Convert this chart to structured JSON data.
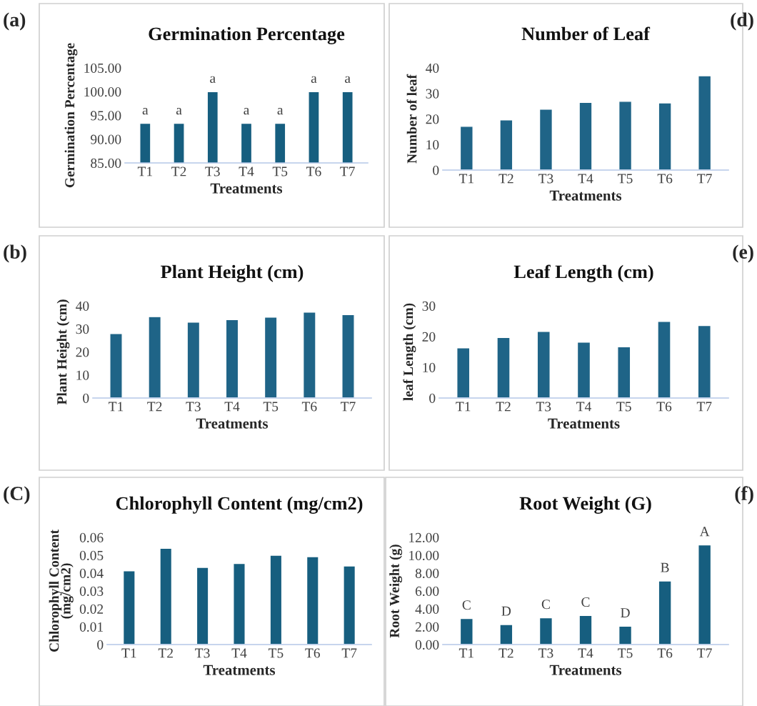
{
  "chart_data": [
    {
      "type": "bar",
      "title": "Germination Percentage",
      "xlabel": "Treatments",
      "ylabel": "Germination Percentage",
      "annotations": [
        "(a)"
      ],
      "categories": [
        "T1",
        "T2",
        "T3",
        "T4",
        "T5",
        "T6",
        "T7"
      ],
      "values": [
        93.33,
        93.33,
        100,
        93.33,
        93.33,
        100,
        100
      ],
      "color": "#165e7f",
      "value_labels": [
        "a",
        "a",
        "a",
        "a",
        "a",
        "a",
        "a"
      ],
      "ylim": [
        85,
        105
      ],
      "yticks": [
        {
          "value": 85,
          "label": "85.00"
        },
        {
          "value": 90,
          "label": "90.00"
        },
        {
          "value": 95,
          "label": "95.00"
        },
        {
          "value": 100,
          "label": "100.00"
        },
        {
          "value": 105,
          "label": "105.00"
        }
      ],
      "grid": false,
      "legend": false
    },
    {
      "type": "bar",
      "title": "Number of Leaf",
      "xlabel": "Treatments",
      "ylabel": "Number of leaf",
      "annotations": [
        "(d)"
      ],
      "categories": [
        "T1",
        "T2",
        "T3",
        "T4",
        "T5",
        "T6",
        "T7"
      ],
      "values": [
        17.1,
        19.6,
        23.8,
        26.5,
        26.9,
        26.3,
        36.9
      ],
      "color": "#1f6487",
      "ylim": [
        0,
        40
      ],
      "yticks": [
        0,
        10,
        20,
        30,
        40
      ],
      "grid": false,
      "legend": false
    },
    {
      "type": "bar",
      "title": "Plant Height (cm)",
      "xlabel": "Treatments",
      "ylabel": "Plant Height (cm)",
      "annotations": [
        "(b)"
      ],
      "categories": [
        "T1",
        "T2",
        "T3",
        "T4",
        "T5",
        "T6",
        "T7"
      ],
      "values": [
        28.0,
        35.3,
        32.9,
        34.0,
        35.1,
        37.3,
        36.2
      ],
      "color": "#1f6487",
      "ylim": [
        0,
        40
      ],
      "yticks": [
        0,
        10,
        20,
        30,
        40
      ],
      "grid": false,
      "legend": false
    },
    {
      "type": "bar",
      "title": "Leaf Length (cm)",
      "xlabel": "Treatments",
      "ylabel": "leaf Length (cm)",
      "annotations": [
        "(e)"
      ],
      "categories": [
        "T1",
        "T2",
        "T3",
        "T4",
        "T5",
        "T6",
        "T7"
      ],
      "values": [
        16.3,
        19.7,
        21.7,
        18.2,
        16.7,
        24.9,
        23.6
      ],
      "color": "#1f6487",
      "ylim": [
        0,
        30
      ],
      "yticks": [
        0,
        10,
        20,
        30
      ],
      "grid": false,
      "legend": false
    },
    {
      "type": "bar",
      "title": "Chlorophyll Content (mg/cm2)",
      "xlabel": "Treatments",
      "ylabel": "Chlorophyll Content\n(mg/cm2)",
      "annotations": [
        "(C)"
      ],
      "categories": [
        "T1",
        "T2",
        "T3",
        "T4",
        "T5",
        "T6",
        "T7"
      ],
      "values": [
        0.0413,
        0.0539,
        0.0432,
        0.0454,
        0.05,
        0.0492,
        0.044
      ],
      "color": "#165e7f",
      "ylim": [
        0,
        0.06
      ],
      "yticks": [
        0,
        0.01,
        0.02,
        0.03,
        0.04,
        0.05,
        0.06
      ],
      "grid": false,
      "legend": false
    },
    {
      "type": "bar",
      "title": "Root Weight (G)",
      "xlabel": "Treatments",
      "ylabel": "Root Weight (g)",
      "annotations": [
        "(f)"
      ],
      "categories": [
        "T1",
        "T2",
        "T3",
        "T4",
        "T5",
        "T6",
        "T7"
      ],
      "values": [
        2.92,
        2.24,
        3.0,
        3.25,
        2.05,
        7.12,
        11.15
      ],
      "color": "#165e7f",
      "value_labels": [
        "C",
        "D",
        "C",
        "C",
        "D",
        "B",
        "A"
      ],
      "ylim": [
        0,
        12
      ],
      "yticks": [
        {
          "value": 0,
          "label": "0.00"
        },
        {
          "value": 2,
          "label": "2.00"
        },
        {
          "value": 4,
          "label": "4.00"
        },
        {
          "value": 6,
          "label": "6.00"
        },
        {
          "value": 8,
          "label": "8.00"
        },
        {
          "value": 10,
          "label": "10.00"
        },
        {
          "value": 12,
          "label": "12.00"
        }
      ],
      "grid": false,
      "legend": false
    }
  ]
}
